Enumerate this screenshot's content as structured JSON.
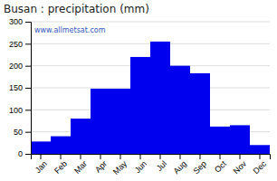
{
  "chart_data": {
    "type": "bar",
    "title": "Busan : precipitation (mm)",
    "categories": [
      "Jan",
      "Feb",
      "Mar",
      "Apr",
      "May",
      "Jun",
      "Jul",
      "Aug",
      "Sep",
      "Oct",
      "Nov",
      "Dec"
    ],
    "values": [
      28,
      40,
      80,
      148,
      148,
      220,
      255,
      200,
      183,
      62,
      65,
      20
    ],
    "color": "#0000ee",
    "ylim": [
      0,
      300
    ],
    "yticks": [
      0,
      50,
      100,
      150,
      200,
      250,
      300
    ],
    "grid": true,
    "annotations": [
      "www.allmetsat.com"
    ]
  }
}
